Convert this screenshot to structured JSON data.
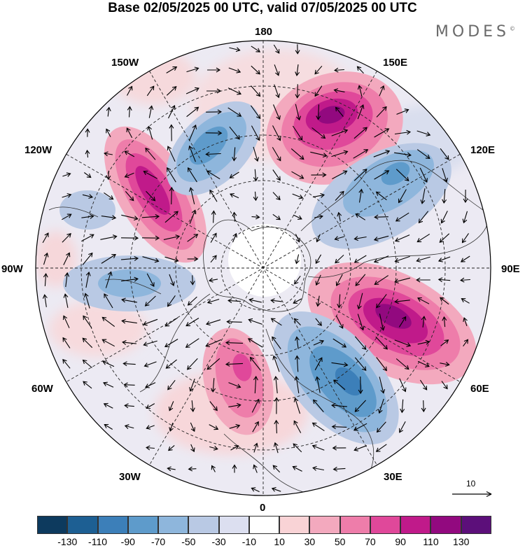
{
  "title": "Base 02/05/2025 00 UTC, valid 07/05/2025 00 UTC",
  "brand": "MODES",
  "brand_mark": "©",
  "longitude_labels": {
    "lon_180": "180",
    "lon_150w": "150W",
    "lon_150e": "150E",
    "lon_120w": "120W",
    "lon_120e": "120E",
    "lon_90w": "90W",
    "lon_90e": "90E",
    "lon_60w": "60W",
    "lon_60e": "60E",
    "lon_30w": "30W",
    "lon_30e": "30E",
    "lon_0": "0"
  },
  "reference_vector": {
    "label": "10"
  },
  "colorbar": {
    "colors": [
      "#0d3a5e",
      "#1d5f93",
      "#3c7fb9",
      "#5e9bcb",
      "#8eb6dc",
      "#b9c9e4",
      "#dcdff0",
      "#ffffff",
      "#f9d3d6",
      "#f3a9be",
      "#ee7daa",
      "#e0489a",
      "#c01a8a",
      "#92097f",
      "#5c0f7a"
    ],
    "tick_labels": [
      "-130",
      "-110",
      "-90",
      "-70",
      "-50",
      "-30",
      "-10",
      "10",
      "30",
      "50",
      "70",
      "90",
      "110",
      "130"
    ]
  },
  "anomaly_centers": [
    {
      "sector": "150E",
      "sign": "positive",
      "level": 120
    },
    {
      "sector": "90E-60E",
      "sign": "positive",
      "level": 115
    },
    {
      "sector": "120W-150W",
      "sign": "positive",
      "level": 100
    },
    {
      "sector": "0-30W",
      "sign": "positive",
      "level": 70
    },
    {
      "sector": "30E-60E",
      "sign": "negative",
      "level": -80
    },
    {
      "sector": "150W-180",
      "sign": "negative",
      "level": -70
    },
    {
      "sector": "120E",
      "sign": "negative",
      "level": -50
    },
    {
      "sector": "90W",
      "sign": "negative",
      "level": -40
    }
  ]
}
